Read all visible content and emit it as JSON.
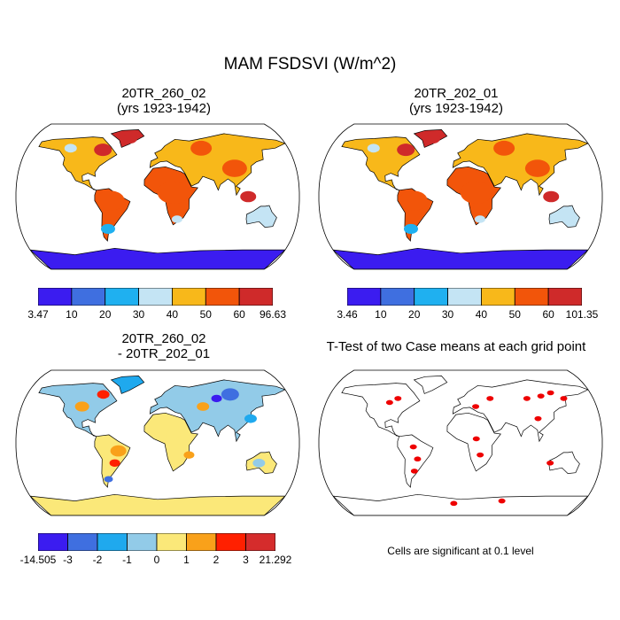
{
  "title": "MAM FSDSVI (W/m^2)",
  "panels": {
    "p1": {
      "line1": "20TR_260_02",
      "line2": "(yrs 1923-1942)"
    },
    "p2": {
      "line1": "20TR_202_01",
      "line2": "(yrs 1923-1942)"
    },
    "p3": {
      "line1": "20TR_260_02",
      "line2": "- 20TR_202_01"
    },
    "p4": {
      "line1": "T-Test of two Case means at each grid point",
      "note": "Cells are significant at 0.1 level"
    }
  },
  "colorbars": {
    "cb1": {
      "colors": [
        "#3b1cf0",
        "#3f6fe0",
        "#1fb0f0",
        "#c4e4f4",
        "#f8b81a",
        "#f2550a",
        "#cf2a2a"
      ],
      "labels": [
        "3.47",
        "10",
        "20",
        "30",
        "40",
        "50",
        "60",
        "96.63"
      ]
    },
    "cb2": {
      "colors": [
        "#3b1cf0",
        "#3f6fe0",
        "#1fb0f0",
        "#c4e4f4",
        "#f8b81a",
        "#f2550a",
        "#cf2a2a"
      ],
      "labels": [
        "3.46",
        "10",
        "20",
        "30",
        "40",
        "50",
        "60",
        "101.35"
      ]
    },
    "cb3": {
      "colors": [
        "#3b1cf0",
        "#3f6fe0",
        "#1fa9ee",
        "#92cbe8",
        "#fbe879",
        "#f9a11a",
        "#ff2000",
        "#d52c2c"
      ],
      "labels": [
        "-14.505",
        "-3",
        "-2",
        "-1",
        "0",
        "1",
        "2",
        "3",
        "21.292"
      ]
    }
  },
  "map_style": {
    "ocean": "#ffffff",
    "coast": "#000000",
    "significance_color": "#ee0000"
  }
}
